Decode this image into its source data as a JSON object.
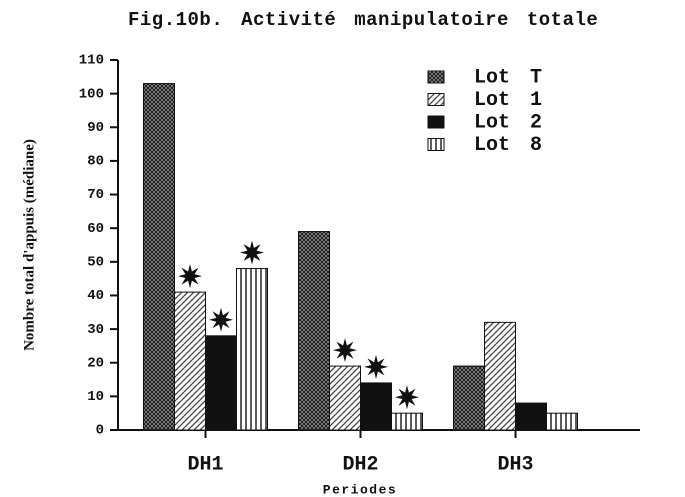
{
  "chart_data": {
    "type": "bar",
    "title": "Fig.10b. Activité manipulatoire totale",
    "y_label": "Nombre total d'appuis (médiane)",
    "x_label": "Periodes",
    "categories": [
      "DH1",
      "DH2",
      "DH3"
    ],
    "series": [
      {
        "name": "Lot T",
        "color": "#222222",
        "values": [
          103,
          59,
          19
        ],
        "starred": [
          false,
          false,
          false
        ]
      },
      {
        "name": "Lot 1",
        "color": "#444444",
        "values": [
          41,
          19,
          32
        ],
        "starred": [
          true,
          true,
          false
        ]
      },
      {
        "name": "Lot 2",
        "color": "#111111",
        "values": [
          28,
          14,
          8
        ],
        "starred": [
          true,
          true,
          false
        ]
      },
      {
        "name": "Lot 8",
        "color": "#333333",
        "values": [
          48,
          5,
          5
        ],
        "starred": [
          true,
          true,
          false
        ]
      }
    ],
    "ylim": [
      0,
      110
    ],
    "yticks": [
      0,
      10,
      20,
      30,
      40,
      50,
      60,
      70,
      80,
      90,
      100,
      110
    ],
    "legend": "upper right"
  }
}
